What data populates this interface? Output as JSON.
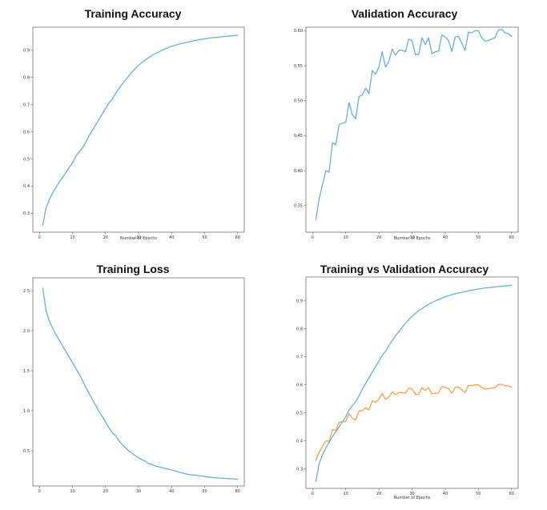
{
  "chart_data": [
    {
      "type": "line",
      "title": "Training Accuracy",
      "xlabel": "Number of Epochs",
      "ylabel": "",
      "xlim": [
        -2,
        62
      ],
      "ylim": [
        0.23,
        0.985
      ],
      "xticks": [
        0,
        10,
        20,
        30,
        40,
        50,
        60
      ],
      "yticks": [
        0.3,
        0.4,
        0.5,
        0.6,
        0.7,
        0.8,
        0.9
      ],
      "series": [
        {
          "color": "#6aaed6",
          "x": [
            1,
            2,
            3,
            4,
            5,
            6,
            7,
            8,
            9,
            10,
            11,
            12,
            13,
            14,
            15,
            16,
            17,
            18,
            19,
            20,
            21,
            22,
            23,
            24,
            25,
            26,
            27,
            28,
            29,
            30,
            31,
            32,
            33,
            34,
            35,
            36,
            37,
            38,
            39,
            40,
            41,
            42,
            43,
            44,
            45,
            46,
            47,
            48,
            49,
            50,
            51,
            52,
            53,
            54,
            55,
            56,
            57,
            58,
            59,
            60
          ],
          "y": [
            0.255,
            0.32,
            0.35,
            0.375,
            0.395,
            0.415,
            0.432,
            0.45,
            0.468,
            0.485,
            0.51,
            0.525,
            0.54,
            0.56,
            0.585,
            0.605,
            0.625,
            0.645,
            0.665,
            0.685,
            0.705,
            0.72,
            0.74,
            0.758,
            0.775,
            0.79,
            0.805,
            0.82,
            0.832,
            0.845,
            0.855,
            0.865,
            0.872,
            0.88,
            0.888,
            0.893,
            0.9,
            0.905,
            0.91,
            0.915,
            0.918,
            0.922,
            0.925,
            0.928,
            0.93,
            0.933,
            0.936,
            0.938,
            0.94,
            0.942,
            0.944,
            0.946,
            0.947,
            0.948,
            0.95,
            0.951,
            0.952,
            0.953,
            0.954,
            0.956
          ]
        }
      ]
    },
    {
      "type": "line",
      "title": "Validation Accuracy",
      "xlabel": "Number of Epochs",
      "ylabel": "",
      "xlim": [
        -2,
        62
      ],
      "ylim": [
        0.312,
        0.605
      ],
      "xticks": [
        0,
        10,
        20,
        30,
        40,
        50,
        60
      ],
      "yticks": [
        0.35,
        0.4,
        0.45,
        0.5,
        0.55,
        0.6
      ],
      "series": [
        {
          "color": "#6aaed6",
          "x": [
            1,
            2,
            3,
            4,
            5,
            6,
            7,
            8,
            9,
            10,
            11,
            12,
            13,
            14,
            15,
            16,
            17,
            18,
            19,
            20,
            21,
            22,
            23,
            24,
            25,
            26,
            27,
            28,
            29,
            30,
            31,
            32,
            33,
            34,
            35,
            36,
            37,
            38,
            39,
            40,
            41,
            42,
            43,
            44,
            45,
            46,
            47,
            48,
            49,
            50,
            51,
            52,
            53,
            54,
            55,
            56,
            57,
            58,
            59,
            60
          ],
          "y": [
            0.33,
            0.36,
            0.38,
            0.4,
            0.398,
            0.44,
            0.437,
            0.466,
            0.468,
            0.469,
            0.497,
            0.48,
            0.474,
            0.506,
            0.508,
            0.518,
            0.51,
            0.543,
            0.538,
            0.548,
            0.57,
            0.548,
            0.556,
            0.574,
            0.565,
            0.572,
            0.572,
            0.57,
            0.588,
            0.586,
            0.566,
            0.566,
            0.59,
            0.58,
            0.59,
            0.567,
            0.57,
            0.571,
            0.594,
            0.591,
            0.586,
            0.57,
            0.591,
            0.592,
            0.582,
            0.572,
            0.598,
            0.597,
            0.6,
            0.6,
            0.59,
            0.585,
            0.586,
            0.588,
            0.59,
            0.601,
            0.602,
            0.597,
            0.596,
            0.592
          ]
        }
      ]
    },
    {
      "type": "line",
      "title": "Training Loss",
      "xlabel": "",
      "ylabel": "",
      "xlim": [
        -2,
        62
      ],
      "ylim": [
        0.06,
        2.66
      ],
      "xticks": [
        0,
        10,
        20,
        30,
        40,
        50,
        60
      ],
      "yticks": [
        0.5,
        1.0,
        1.5,
        2.0,
        2.5
      ],
      "series": [
        {
          "color": "#6aaed6",
          "x": [
            1,
            2,
            3,
            4,
            5,
            6,
            7,
            8,
            9,
            10,
            11,
            12,
            13,
            14,
            15,
            16,
            17,
            18,
            19,
            20,
            21,
            22,
            23,
            24,
            25,
            26,
            27,
            28,
            29,
            30,
            31,
            32,
            33,
            34,
            35,
            36,
            37,
            38,
            39,
            40,
            41,
            42,
            43,
            44,
            45,
            46,
            47,
            48,
            49,
            50,
            51,
            52,
            53,
            54,
            55,
            56,
            57,
            58,
            59,
            60
          ],
          "y": [
            2.53,
            2.25,
            2.12,
            2.03,
            1.95,
            1.88,
            1.81,
            1.74,
            1.67,
            1.6,
            1.53,
            1.46,
            1.38,
            1.29,
            1.22,
            1.14,
            1.07,
            0.99,
            0.93,
            0.86,
            0.79,
            0.73,
            0.69,
            0.63,
            0.58,
            0.54,
            0.5,
            0.47,
            0.44,
            0.41,
            0.39,
            0.37,
            0.34,
            0.33,
            0.31,
            0.3,
            0.29,
            0.28,
            0.27,
            0.26,
            0.25,
            0.235,
            0.225,
            0.215,
            0.205,
            0.2,
            0.195,
            0.19,
            0.185,
            0.178,
            0.172,
            0.168,
            0.163,
            0.16,
            0.158,
            0.155,
            0.153,
            0.15,
            0.148,
            0.145
          ]
        }
      ]
    },
    {
      "type": "line",
      "title": "Training vs Validation Accuracy",
      "xlabel": "Number of Epochs",
      "ylabel": "",
      "xlim": [
        -2,
        62
      ],
      "ylim": [
        0.23,
        0.985
      ],
      "xticks": [
        0,
        10,
        20,
        30,
        40,
        50,
        60
      ],
      "yticks": [
        0.3,
        0.4,
        0.5,
        0.6,
        0.7,
        0.8,
        0.9
      ],
      "series": [
        {
          "color": "#6aaed6",
          "x": [
            1,
            2,
            3,
            4,
            5,
            6,
            7,
            8,
            9,
            10,
            11,
            12,
            13,
            14,
            15,
            16,
            17,
            18,
            19,
            20,
            21,
            22,
            23,
            24,
            25,
            26,
            27,
            28,
            29,
            30,
            31,
            32,
            33,
            34,
            35,
            36,
            37,
            38,
            39,
            40,
            41,
            42,
            43,
            44,
            45,
            46,
            47,
            48,
            49,
            50,
            51,
            52,
            53,
            54,
            55,
            56,
            57,
            58,
            59,
            60
          ],
          "y": [
            0.255,
            0.32,
            0.35,
            0.375,
            0.395,
            0.415,
            0.432,
            0.45,
            0.468,
            0.485,
            0.51,
            0.525,
            0.54,
            0.56,
            0.585,
            0.605,
            0.625,
            0.645,
            0.665,
            0.685,
            0.705,
            0.72,
            0.74,
            0.758,
            0.775,
            0.79,
            0.805,
            0.82,
            0.832,
            0.845,
            0.855,
            0.865,
            0.872,
            0.88,
            0.888,
            0.893,
            0.9,
            0.905,
            0.91,
            0.915,
            0.918,
            0.922,
            0.925,
            0.928,
            0.93,
            0.933,
            0.936,
            0.938,
            0.94,
            0.942,
            0.944,
            0.946,
            0.947,
            0.948,
            0.95,
            0.951,
            0.952,
            0.953,
            0.954,
            0.956
          ]
        },
        {
          "color": "#f5a04d",
          "x": [
            1,
            2,
            3,
            4,
            5,
            6,
            7,
            8,
            9,
            10,
            11,
            12,
            13,
            14,
            15,
            16,
            17,
            18,
            19,
            20,
            21,
            22,
            23,
            24,
            25,
            26,
            27,
            28,
            29,
            30,
            31,
            32,
            33,
            34,
            35,
            36,
            37,
            38,
            39,
            40,
            41,
            42,
            43,
            44,
            45,
            46,
            47,
            48,
            49,
            50,
            51,
            52,
            53,
            54,
            55,
            56,
            57,
            58,
            59,
            60
          ],
          "y": [
            0.33,
            0.36,
            0.38,
            0.4,
            0.398,
            0.44,
            0.437,
            0.466,
            0.468,
            0.469,
            0.497,
            0.48,
            0.474,
            0.506,
            0.508,
            0.518,
            0.51,
            0.543,
            0.538,
            0.548,
            0.57,
            0.548,
            0.556,
            0.574,
            0.565,
            0.572,
            0.572,
            0.57,
            0.588,
            0.586,
            0.566,
            0.566,
            0.59,
            0.58,
            0.59,
            0.567,
            0.57,
            0.571,
            0.594,
            0.591,
            0.586,
            0.57,
            0.591,
            0.592,
            0.582,
            0.572,
            0.598,
            0.597,
            0.6,
            0.6,
            0.59,
            0.585,
            0.586,
            0.588,
            0.59,
            0.601,
            0.602,
            0.597,
            0.596,
            0.592
          ]
        }
      ]
    }
  ]
}
